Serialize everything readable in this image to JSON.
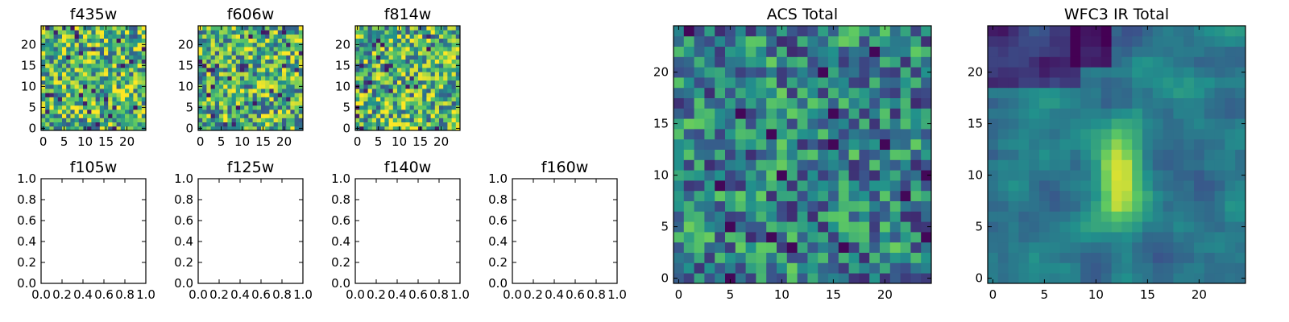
{
  "chart_data": [
    {
      "type": "heatmap",
      "title": "f435w",
      "grid": [
        25,
        25
      ],
      "xlim": [
        -0.5,
        24.5
      ],
      "ylim": [
        -0.5,
        24.5
      ],
      "xticks": [
        0,
        5,
        10,
        15,
        20
      ],
      "yticks": [
        0,
        5,
        10,
        15,
        20
      ],
      "colormap": "viridis",
      "texture": "noise",
      "seed": 11
    },
    {
      "type": "heatmap",
      "title": "f606w",
      "grid": [
        25,
        25
      ],
      "xlim": [
        -0.5,
        24.5
      ],
      "ylim": [
        -0.5,
        24.5
      ],
      "xticks": [
        0,
        5,
        10,
        15,
        20
      ],
      "yticks": [
        0,
        5,
        10,
        15,
        20
      ],
      "colormap": "viridis",
      "texture": "noise",
      "seed": 23
    },
    {
      "type": "heatmap",
      "title": "f814w",
      "grid": [
        25,
        25
      ],
      "xlim": [
        -0.5,
        24.5
      ],
      "ylim": [
        -0.5,
        24.5
      ],
      "xticks": [
        0,
        5,
        10,
        15,
        20
      ],
      "yticks": [
        0,
        5,
        10,
        15,
        20
      ],
      "colormap": "viridis",
      "texture": "noise",
      "seed": 37
    },
    {
      "type": "empty",
      "title": "f105w",
      "xlim": [
        0,
        1
      ],
      "ylim": [
        0,
        1
      ],
      "xticks": [
        "0.0",
        "0.2",
        "0.4",
        "0.6",
        "0.8",
        "1.0"
      ],
      "yticks": [
        "0.0",
        "0.2",
        "0.4",
        "0.6",
        "0.8",
        "1.0"
      ]
    },
    {
      "type": "empty",
      "title": "f125w",
      "xlim": [
        0,
        1
      ],
      "ylim": [
        0,
        1
      ],
      "xticks": [
        "0.0",
        "0.2",
        "0.4",
        "0.6",
        "0.8",
        "1.0"
      ],
      "yticks": [
        "0.0",
        "0.2",
        "0.4",
        "0.6",
        "0.8",
        "1.0"
      ]
    },
    {
      "type": "empty",
      "title": "f140w",
      "xlim": [
        0,
        1
      ],
      "ylim": [
        0,
        1
      ],
      "xticks": [
        "0.0",
        "0.2",
        "0.4",
        "0.6",
        "0.8",
        "1.0"
      ],
      "yticks": [
        "0.0",
        "0.2",
        "0.4",
        "0.6",
        "0.8",
        "1.0"
      ]
    },
    {
      "type": "empty",
      "title": "f160w",
      "xlim": [
        0,
        1
      ],
      "ylim": [
        0,
        1
      ],
      "xticks": [
        "0.0",
        "0.2",
        "0.4",
        "0.6",
        "0.8",
        "1.0"
      ],
      "yticks": [
        "0.0",
        "0.2",
        "0.4",
        "0.6",
        "0.8",
        "1.0"
      ]
    },
    {
      "type": "heatmap",
      "title": "ACS Total",
      "grid": [
        25,
        25
      ],
      "xlim": [
        -0.5,
        24.5
      ],
      "ylim": [
        -0.5,
        24.5
      ],
      "xticks": [
        0,
        5,
        10,
        15,
        20
      ],
      "yticks": [
        0,
        5,
        10,
        15,
        20
      ],
      "colormap": "viridis",
      "texture": "noise-mid",
      "seed": 53
    },
    {
      "type": "heatmap",
      "title": "WFC3 IR Total",
      "grid": [
        25,
        25
      ],
      "xlim": [
        -0.5,
        24.5
      ],
      "ylim": [
        -0.5,
        24.5
      ],
      "xticks": [
        0,
        5,
        10,
        15,
        20
      ],
      "yticks": [
        0,
        5,
        10,
        15,
        20
      ],
      "colormap": "viridis",
      "texture": "smooth-blob",
      "seed": 71
    }
  ],
  "colormap_stops": [
    "#440154",
    "#3b528b",
    "#21918c",
    "#5ec962",
    "#fde725"
  ]
}
